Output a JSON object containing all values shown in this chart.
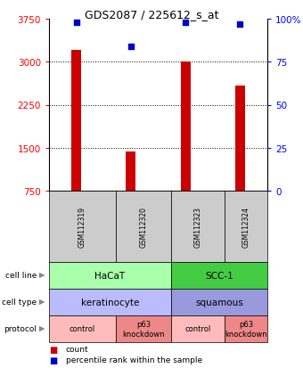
{
  "title": "GDS2087 / 225612_s_at",
  "samples": [
    "GSM112319",
    "GSM112320",
    "GSM112323",
    "GSM112324"
  ],
  "bar_values": [
    3200,
    1430,
    3010,
    2580
  ],
  "dot_values": [
    98,
    84,
    98,
    97
  ],
  "ylim_left": [
    750,
    3750
  ],
  "ylim_right": [
    0,
    100
  ],
  "yticks_left": [
    750,
    1500,
    2250,
    3000,
    3750
  ],
  "yticks_right": [
    0,
    25,
    50,
    75,
    100
  ],
  "bar_color": "#cc0000",
  "dot_color": "#0000cc",
  "cell_line_row": [
    {
      "label": "HaCaT",
      "cols": [
        0,
        1
      ],
      "color": "#aaffaa"
    },
    {
      "label": "SCC-1",
      "cols": [
        2,
        3
      ],
      "color": "#44cc44"
    }
  ],
  "cell_type_row": [
    {
      "label": "keratinocyte",
      "cols": [
        0,
        1
      ],
      "color": "#bbbbff"
    },
    {
      "label": "squamous",
      "cols": [
        2,
        3
      ],
      "color": "#9999dd"
    }
  ],
  "protocol_row": [
    {
      "label": "control",
      "cols": [
        0
      ],
      "color": "#ffbbbb"
    },
    {
      "label": "p63\nknockdown",
      "cols": [
        1
      ],
      "color": "#ee8888"
    },
    {
      "label": "control",
      "cols": [
        2
      ],
      "color": "#ffbbbb"
    },
    {
      "label": "p63\nknockdown",
      "cols": [
        3
      ],
      "color": "#ee8888"
    }
  ],
  "bg_color": "#ffffff",
  "sample_bg_color": "#cccccc"
}
